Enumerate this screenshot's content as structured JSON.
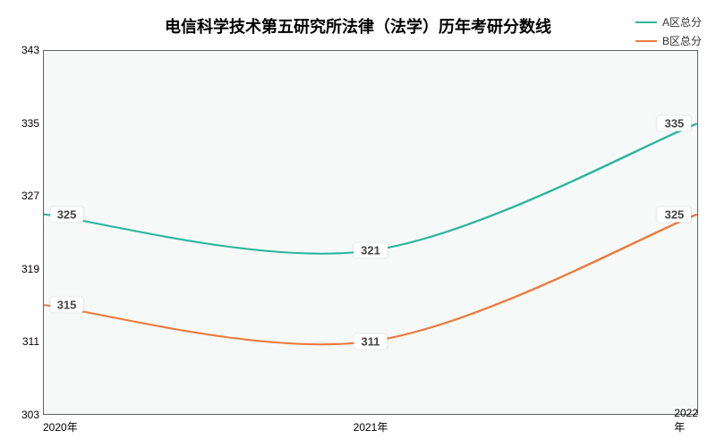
{
  "chart": {
    "title": "电信科学技术第五研究所法律（法学）历年考研分数线",
    "title_fontsize": 18,
    "title_color": "#000000",
    "background_color": "#ffffff",
    "plot_background": "#f7faf9",
    "border_color": "#5f5f5f",
    "series": [
      {
        "name": "A区总分",
        "color": "#29b69c",
        "values": [
          325,
          321,
          335
        ],
        "line_width": 2
      },
      {
        "name": "B区总分",
        "color": "#eb7a3c",
        "values": [
          315,
          311,
          325
        ],
        "line_width": 2
      }
    ],
    "x_categories": [
      "2020年",
      "2021年",
      "2022年"
    ],
    "ylim": [
      303,
      343
    ],
    "yticks": [
      303,
      311,
      319,
      327,
      335,
      343
    ],
    "legend_fontsize": 12,
    "axis_label_fontsize": 12,
    "data_label_fontsize": 13,
    "data_label_bg": "#ffffff",
    "data_label_color": "#444444"
  }
}
